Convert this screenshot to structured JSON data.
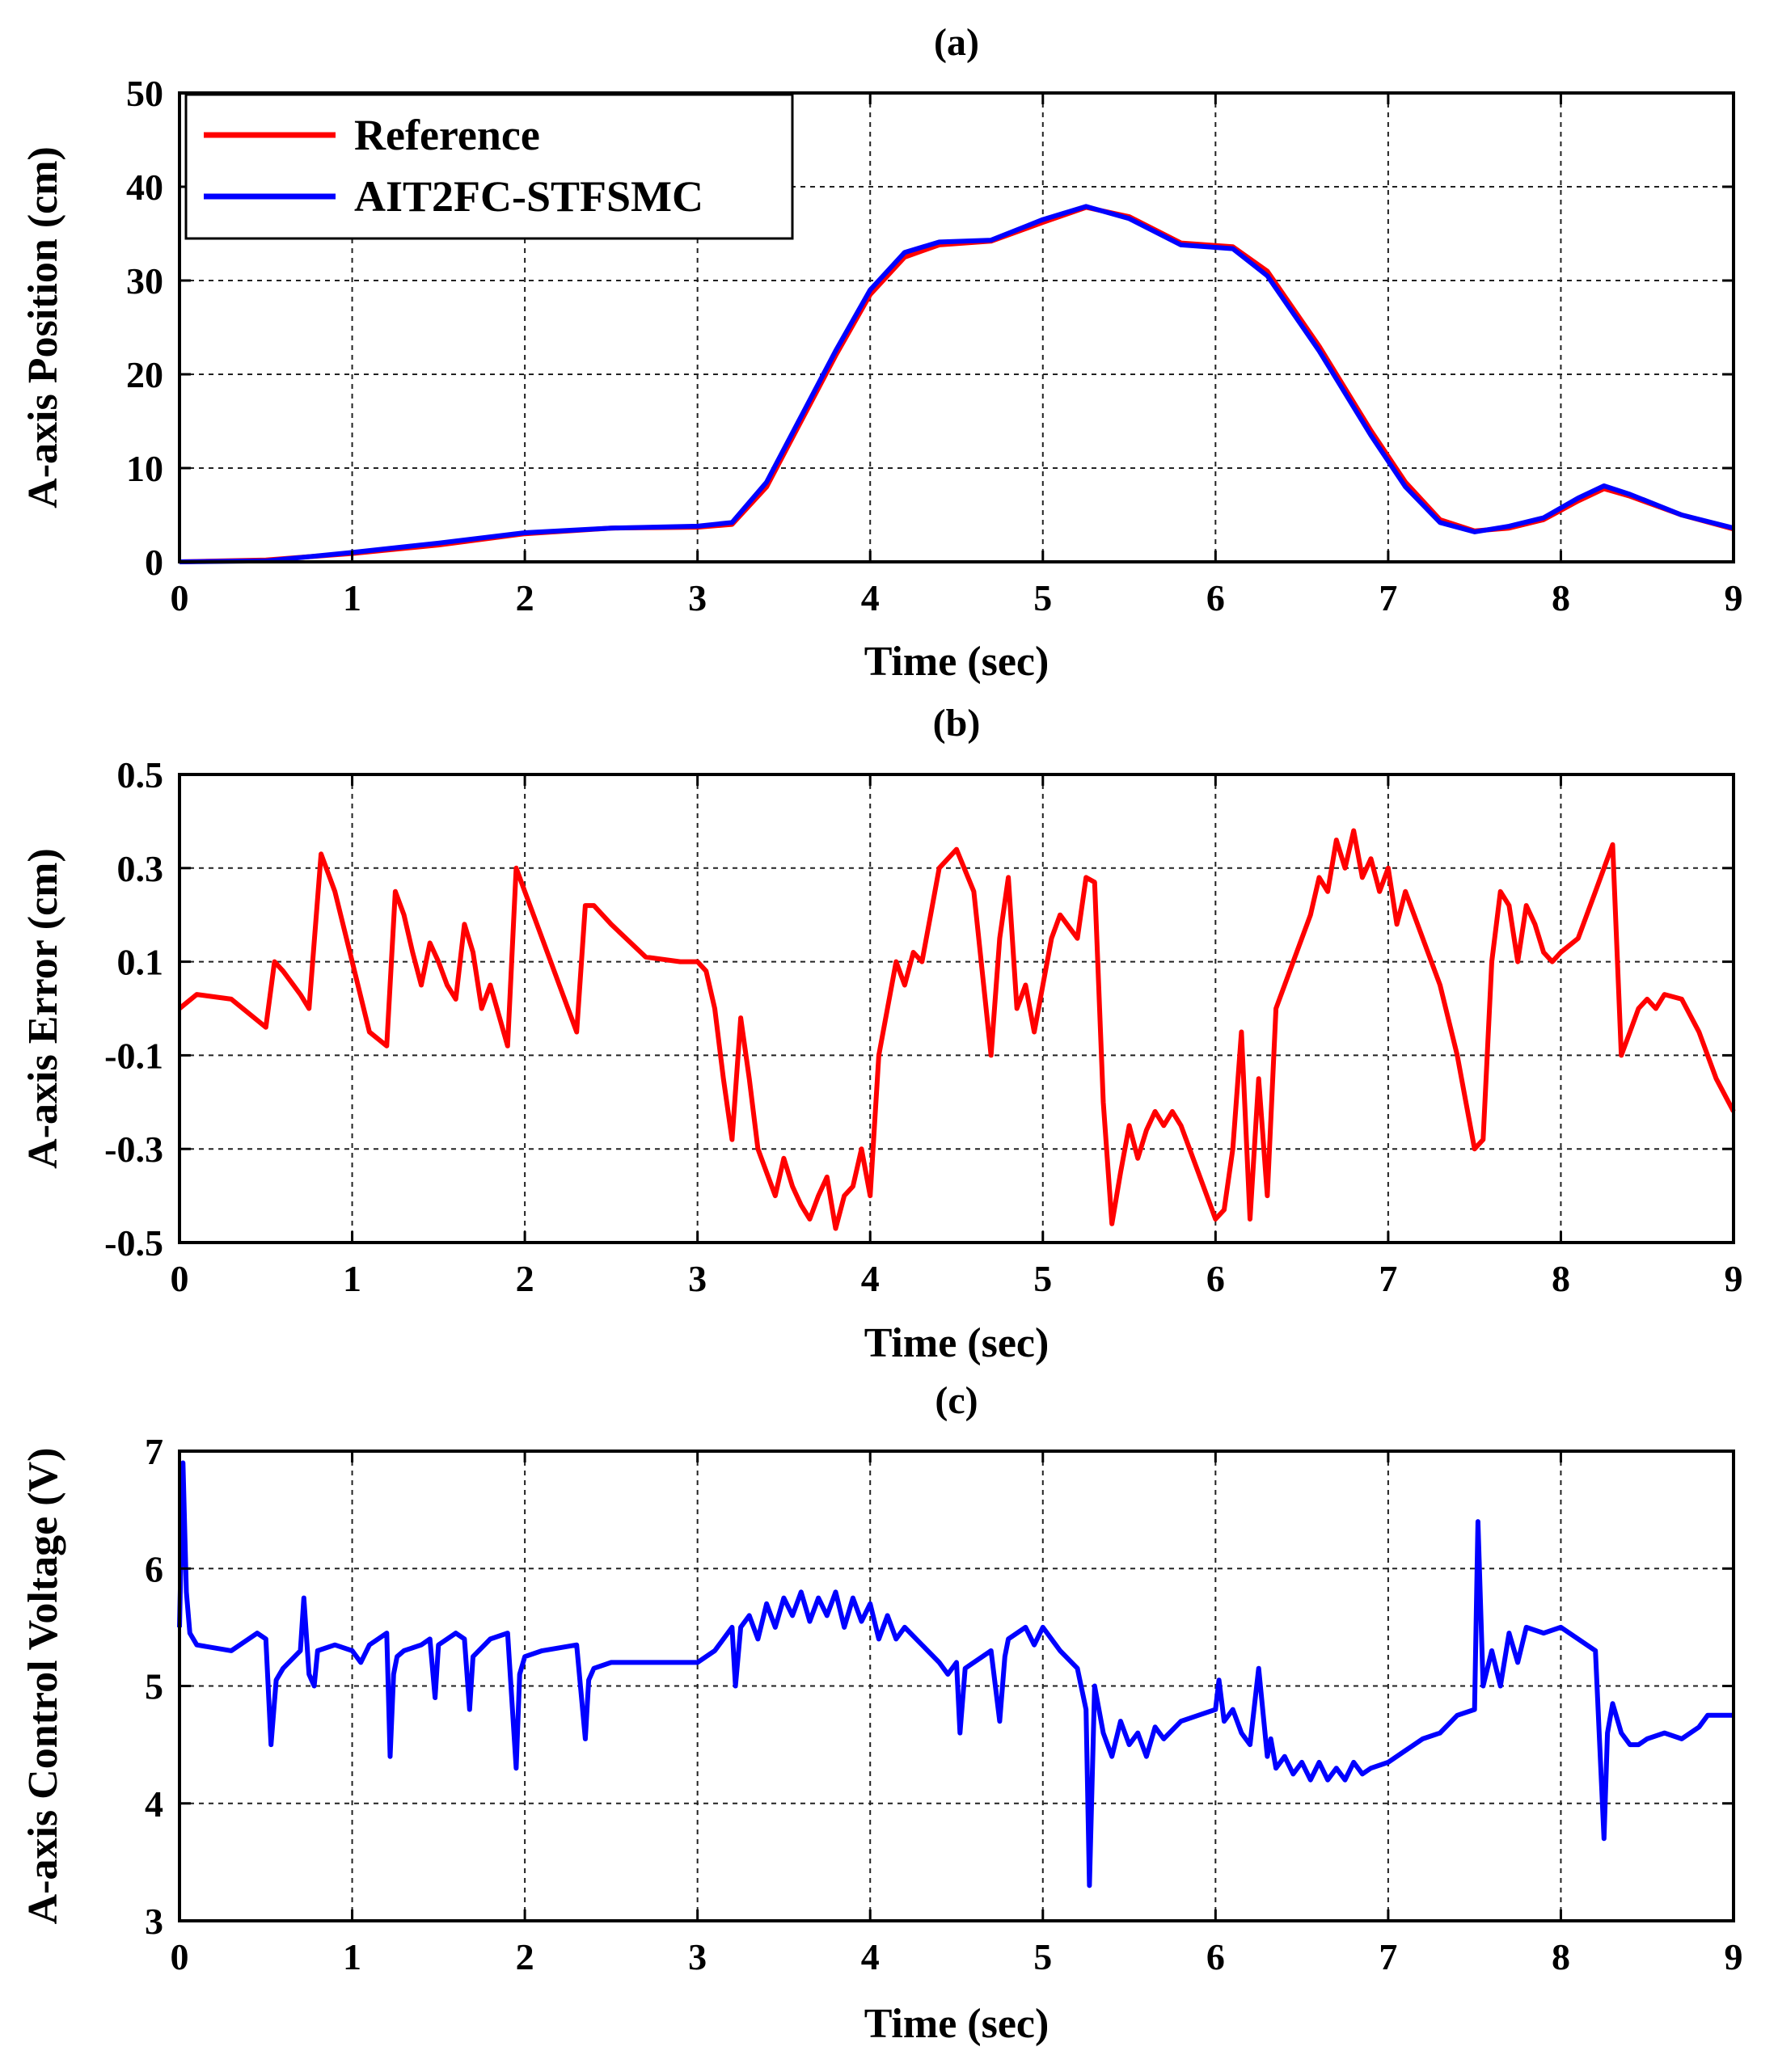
{
  "chart_data": [
    {
      "type": "line",
      "title": "(a)",
      "xlabel": "Time (sec)",
      "ylabel": "A-axis Position (cm)",
      "xlim": [
        0,
        9
      ],
      "ylim": [
        0,
        50
      ],
      "xticks": [
        0,
        1,
        2,
        3,
        4,
        5,
        6,
        7,
        8,
        9
      ],
      "yticks": [
        0,
        10,
        20,
        30,
        40,
        50
      ],
      "grid": true,
      "legend_position": "top-left",
      "series": [
        {
          "name": "Reference",
          "color": "#ff0000",
          "x": [
            0,
            0.5,
            1.0,
            1.5,
            2.0,
            2.5,
            3.0,
            3.2,
            3.4,
            3.6,
            3.8,
            4.0,
            4.2,
            4.4,
            4.7,
            5.0,
            5.25,
            5.5,
            5.8,
            6.1,
            6.3,
            6.6,
            6.9,
            7.1,
            7.3,
            7.5,
            7.7,
            7.9,
            8.1,
            8.25,
            8.4,
            8.7,
            9.0
          ],
          "y": [
            0,
            0.2,
            0.9,
            1.8,
            3.0,
            3.6,
            3.7,
            4.0,
            8.0,
            15.0,
            22.0,
            28.5,
            32.5,
            33.8,
            34.2,
            36.2,
            37.8,
            36.8,
            34.0,
            33.6,
            31.0,
            23.0,
            14.0,
            8.5,
            4.5,
            3.3,
            3.6,
            4.5,
            6.5,
            7.8,
            7.0,
            5.0,
            3.5
          ]
        },
        {
          "name": "AIT2FC-STFSMC",
          "color": "#0000ff",
          "x": [
            0,
            0.5,
            1.0,
            1.5,
            2.0,
            2.5,
            3.0,
            3.2,
            3.4,
            3.6,
            3.8,
            4.0,
            4.2,
            4.4,
            4.7,
            5.0,
            5.25,
            5.5,
            5.8,
            6.1,
            6.3,
            6.6,
            6.9,
            7.1,
            7.3,
            7.5,
            7.7,
            7.9,
            8.1,
            8.25,
            8.4,
            8.7,
            9.0
          ],
          "y": [
            0,
            0.1,
            1.0,
            2.0,
            3.1,
            3.6,
            3.8,
            4.2,
            8.5,
            15.5,
            22.5,
            29.0,
            33.0,
            34.1,
            34.3,
            36.5,
            37.9,
            36.6,
            33.8,
            33.4,
            30.5,
            22.5,
            13.5,
            8.0,
            4.2,
            3.2,
            3.8,
            4.7,
            6.8,
            8.1,
            7.2,
            5.0,
            3.6
          ]
        }
      ]
    },
    {
      "type": "line",
      "title": "(b)",
      "xlabel": "Time (sec)",
      "ylabel": "A-axis Error (cm)",
      "xlim": [
        0,
        9
      ],
      "ylim": [
        -0.5,
        0.5
      ],
      "xticks": [
        0,
        1,
        2,
        3,
        4,
        5,
        6,
        7,
        8,
        9
      ],
      "yticks": [
        "-0.5",
        "-0.3",
        "-0.1",
        "0.1",
        "0.3",
        "0.5"
      ],
      "grid": true,
      "series": [
        {
          "name": "Error",
          "color": "#ff0000",
          "x": [
            0,
            0.1,
            0.3,
            0.5,
            0.55,
            0.6,
            0.7,
            0.75,
            0.82,
            0.9,
            1.0,
            1.1,
            1.2,
            1.25,
            1.3,
            1.35,
            1.4,
            1.45,
            1.5,
            1.55,
            1.6,
            1.65,
            1.7,
            1.75,
            1.8,
            1.9,
            1.95,
            2.0,
            2.1,
            2.2,
            2.3,
            2.35,
            2.4,
            2.5,
            2.7,
            2.9,
            3.0,
            3.05,
            3.1,
            3.15,
            3.2,
            3.25,
            3.3,
            3.35,
            3.4,
            3.45,
            3.5,
            3.55,
            3.6,
            3.65,
            3.7,
            3.75,
            3.8,
            3.85,
            3.9,
            3.95,
            4.0,
            4.05,
            4.1,
            4.15,
            4.2,
            4.25,
            4.3,
            4.35,
            4.4,
            4.5,
            4.6,
            4.7,
            4.75,
            4.8,
            4.85,
            4.9,
            4.95,
            5.0,
            5.05,
            5.1,
            5.2,
            5.25,
            5.3,
            5.35,
            5.4,
            5.45,
            5.5,
            5.55,
            5.6,
            5.65,
            5.7,
            5.75,
            5.8,
            5.9,
            6.0,
            6.05,
            6.1,
            6.15,
            6.2,
            6.25,
            6.3,
            6.35,
            6.4,
            6.45,
            6.5,
            6.55,
            6.6,
            6.65,
            6.7,
            6.75,
            6.8,
            6.85,
            6.9,
            6.95,
            7.0,
            7.05,
            7.1,
            7.15,
            7.2,
            7.3,
            7.4,
            7.45,
            7.5,
            7.55,
            7.6,
            7.65,
            7.7,
            7.75,
            7.8,
            7.85,
            7.9,
            7.95,
            8.0,
            8.1,
            8.2,
            8.25,
            8.3,
            8.35,
            8.4,
            8.45,
            8.5,
            8.55,
            8.6,
            8.7,
            8.8,
            8.9,
            9.0
          ],
          "y": [
            0.0,
            0.03,
            0.02,
            -0.04,
            0.1,
            0.08,
            0.03,
            0.0,
            0.33,
            0.25,
            0.1,
            -0.05,
            -0.08,
            0.25,
            0.2,
            0.12,
            0.05,
            0.14,
            0.1,
            0.05,
            0.02,
            0.18,
            0.12,
            0.0,
            0.05,
            -0.08,
            0.3,
            0.25,
            0.15,
            0.05,
            -0.05,
            0.22,
            0.22,
            0.18,
            0.11,
            0.1,
            0.1,
            0.08,
            0.0,
            -0.15,
            -0.28,
            -0.02,
            -0.15,
            -0.3,
            -0.35,
            -0.4,
            -0.32,
            -0.38,
            -0.42,
            -0.45,
            -0.4,
            -0.36,
            -0.47,
            -0.4,
            -0.38,
            -0.3,
            -0.4,
            -0.1,
            0.0,
            0.1,
            0.05,
            0.12,
            0.1,
            0.2,
            0.3,
            0.34,
            0.25,
            -0.1,
            0.15,
            0.28,
            0.0,
            0.05,
            -0.05,
            0.05,
            0.15,
            0.2,
            0.15,
            0.28,
            0.27,
            -0.2,
            -0.46,
            -0.35,
            -0.25,
            -0.32,
            -0.26,
            -0.22,
            -0.25,
            -0.22,
            -0.25,
            -0.35,
            -0.45,
            -0.43,
            -0.3,
            -0.05,
            -0.45,
            -0.15,
            -0.4,
            0.0,
            0.05,
            0.1,
            0.15,
            0.2,
            0.28,
            0.25,
            0.36,
            0.3,
            0.38,
            0.28,
            0.32,
            0.25,
            0.3,
            0.18,
            0.25,
            0.2,
            0.15,
            0.05,
            -0.1,
            -0.2,
            -0.3,
            -0.28,
            0.1,
            0.25,
            0.22,
            0.1,
            0.22,
            0.18,
            0.12,
            0.1,
            0.12,
            0.15,
            0.25,
            0.3,
            0.35,
            -0.1,
            -0.05,
            0.0,
            0.02,
            0.0,
            0.03,
            0.02,
            -0.05,
            -0.15,
            -0.22
          ]
        }
      ]
    },
    {
      "type": "line",
      "title": "(c)",
      "xlabel": "Time (sec)",
      "ylabel": "A-axis Control Voltage (V)",
      "xlim": [
        0,
        9
      ],
      "ylim": [
        3,
        7
      ],
      "xticks": [
        0,
        1,
        2,
        3,
        4,
        5,
        6,
        7,
        8,
        9
      ],
      "yticks": [
        3,
        4,
        5,
        6,
        7
      ],
      "grid": true,
      "series": [
        {
          "name": "Control Voltage",
          "color": "#0000ff",
          "x": [
            0,
            0.02,
            0.04,
            0.06,
            0.1,
            0.3,
            0.45,
            0.5,
            0.53,
            0.56,
            0.6,
            0.7,
            0.72,
            0.75,
            0.78,
            0.8,
            0.9,
            1.0,
            1.05,
            1.1,
            1.2,
            1.22,
            1.24,
            1.26,
            1.3,
            1.4,
            1.45,
            1.48,
            1.5,
            1.6,
            1.65,
            1.68,
            1.7,
            1.8,
            1.9,
            1.95,
            1.97,
            2.0,
            2.1,
            2.3,
            2.35,
            2.37,
            2.4,
            2.5,
            2.7,
            2.9,
            3.0,
            3.1,
            3.2,
            3.22,
            3.25,
            3.3,
            3.35,
            3.4,
            3.45,
            3.5,
            3.55,
            3.6,
            3.65,
            3.7,
            3.75,
            3.8,
            3.85,
            3.9,
            3.95,
            4.0,
            4.05,
            4.1,
            4.15,
            4.2,
            4.3,
            4.4,
            4.45,
            4.5,
            4.52,
            4.55,
            4.6,
            4.7,
            4.75,
            4.78,
            4.8,
            4.9,
            4.95,
            5.0,
            5.1,
            5.2,
            5.25,
            5.27,
            5.3,
            5.35,
            5.4,
            5.45,
            5.5,
            5.55,
            5.6,
            5.65,
            5.7,
            5.8,
            5.9,
            6.0,
            6.02,
            6.05,
            6.1,
            6.15,
            6.2,
            6.25,
            6.3,
            6.32,
            6.35,
            6.4,
            6.45,
            6.5,
            6.55,
            6.6,
            6.65,
            6.7,
            6.75,
            6.8,
            6.85,
            6.9,
            7.0,
            7.1,
            7.2,
            7.3,
            7.4,
            7.5,
            7.52,
            7.55,
            7.6,
            7.65,
            7.7,
            7.75,
            7.8,
            7.9,
            8.0,
            8.1,
            8.2,
            8.25,
            8.27,
            8.3,
            8.35,
            8.4,
            8.45,
            8.5,
            8.6,
            8.7,
            8.8,
            8.85,
            8.9,
            9.0
          ],
          "y": [
            5.5,
            6.9,
            5.8,
            5.45,
            5.35,
            5.3,
            5.45,
            5.4,
            4.5,
            5.05,
            5.15,
            5.3,
            5.75,
            5.1,
            5.0,
            5.3,
            5.35,
            5.3,
            5.2,
            5.35,
            5.45,
            4.4,
            5.1,
            5.25,
            5.3,
            5.35,
            5.4,
            4.9,
            5.35,
            5.45,
            5.4,
            4.8,
            5.25,
            5.4,
            5.45,
            4.3,
            5.1,
            5.25,
            5.3,
            5.35,
            4.55,
            5.05,
            5.15,
            5.2,
            5.2,
            5.2,
            5.2,
            5.3,
            5.5,
            5.0,
            5.5,
            5.6,
            5.4,
            5.7,
            5.5,
            5.75,
            5.6,
            5.8,
            5.55,
            5.75,
            5.6,
            5.8,
            5.5,
            5.75,
            5.55,
            5.7,
            5.4,
            5.6,
            5.4,
            5.5,
            5.35,
            5.2,
            5.1,
            5.2,
            4.6,
            5.15,
            5.2,
            5.3,
            4.7,
            5.25,
            5.4,
            5.5,
            5.35,
            5.5,
            5.3,
            5.15,
            4.8,
            3.3,
            5.0,
            4.6,
            4.4,
            4.7,
            4.5,
            4.6,
            4.4,
            4.65,
            4.55,
            4.7,
            4.75,
            4.8,
            5.05,
            4.7,
            4.8,
            4.6,
            4.5,
            5.15,
            4.4,
            4.55,
            4.3,
            4.4,
            4.25,
            4.35,
            4.2,
            4.35,
            4.2,
            4.3,
            4.2,
            4.35,
            4.25,
            4.3,
            4.35,
            4.45,
            4.55,
            4.6,
            4.75,
            4.8,
            6.4,
            5.0,
            5.3,
            5.0,
            5.45,
            5.2,
            5.5,
            5.45,
            5.5,
            5.4,
            5.3,
            3.7,
            4.6,
            4.85,
            4.6,
            4.5,
            4.5,
            4.55,
            4.6,
            4.55,
            4.65,
            4.75,
            4.75,
            4.75
          ]
        }
      ]
    }
  ]
}
